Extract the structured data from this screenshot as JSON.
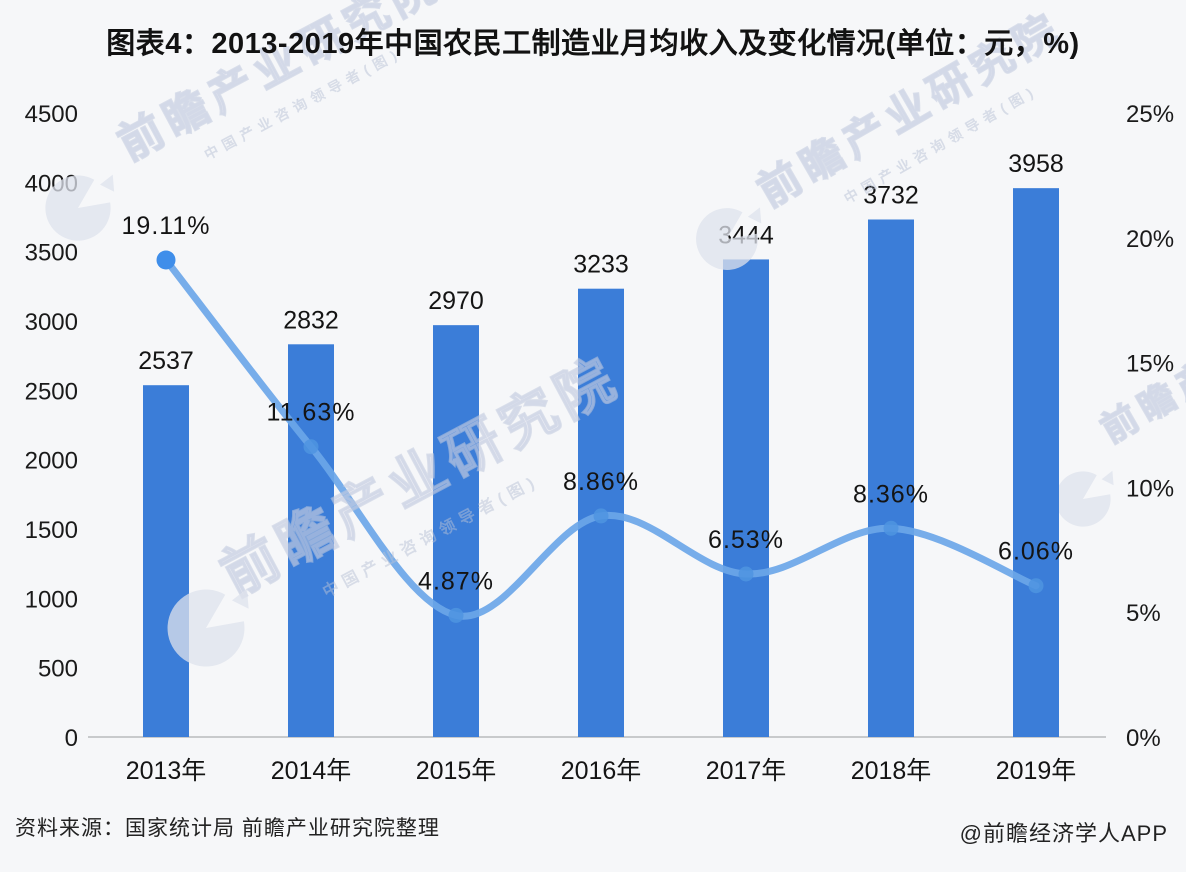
{
  "title": "图表4：2013-2019年中国农民工制造业月均收入及变化情况(单位：元，%)",
  "source_note": "资料来源：国家统计局 前瞻产业研究院整理",
  "credit": "@前瞻经济学人APP",
  "watermark": {
    "brand": "前瞻产业研究院",
    "sub": "中国产业咨询领导者(图)",
    "logo_icon": "pie-crescent-logo"
  },
  "colors": {
    "bar": "#3b7dd8",
    "line": "#6ba6e8",
    "marker_first": "#3f8eea",
    "marker": "#4f94e0",
    "background": "#f6f7f9",
    "axis_line": "#c8cacc",
    "text": "#1a1a1a",
    "watermark": "#dfe3ed"
  },
  "chart_data": {
    "type": "bar",
    "subtype": "combo-bar-line-dual-axis",
    "title": "图表4：2013-2019年中国农民工制造业月均收入及变化情况(单位：元，%)",
    "categories": [
      "2013年",
      "2014年",
      "2015年",
      "2016年",
      "2017年",
      "2018年",
      "2019年"
    ],
    "series": [
      {
        "id": "monthly_income_bar",
        "type": "bar",
        "axis": "left",
        "values": [
          2537,
          2832,
          2970,
          3233,
          3444,
          3732,
          3958
        ],
        "labels": [
          "2537",
          "2832",
          "2970",
          "3233",
          "3444",
          "3732",
          "3958"
        ]
      },
      {
        "id": "yoy_change_line",
        "type": "line",
        "axis": "right",
        "values": [
          19.11,
          11.63,
          4.87,
          8.86,
          6.53,
          8.36,
          6.06
        ],
        "labels": [
          "19.11%",
          "11.63%",
          "4.87%",
          "8.86%",
          "6.53%",
          "8.36%",
          "6.06%"
        ]
      }
    ],
    "left_axis": {
      "min": 0,
      "max": 4500,
      "step": 500,
      "tick_labels": [
        "0",
        "500",
        "1000",
        "1500",
        "2000",
        "2500",
        "3000",
        "3500",
        "4000",
        "4500"
      ]
    },
    "right_axis": {
      "min": 0,
      "max": 25,
      "step": 5,
      "tick_labels": [
        "0%",
        "5%",
        "10%",
        "15%",
        "20%",
        "25%"
      ]
    },
    "grid": false,
    "legend": "none"
  }
}
